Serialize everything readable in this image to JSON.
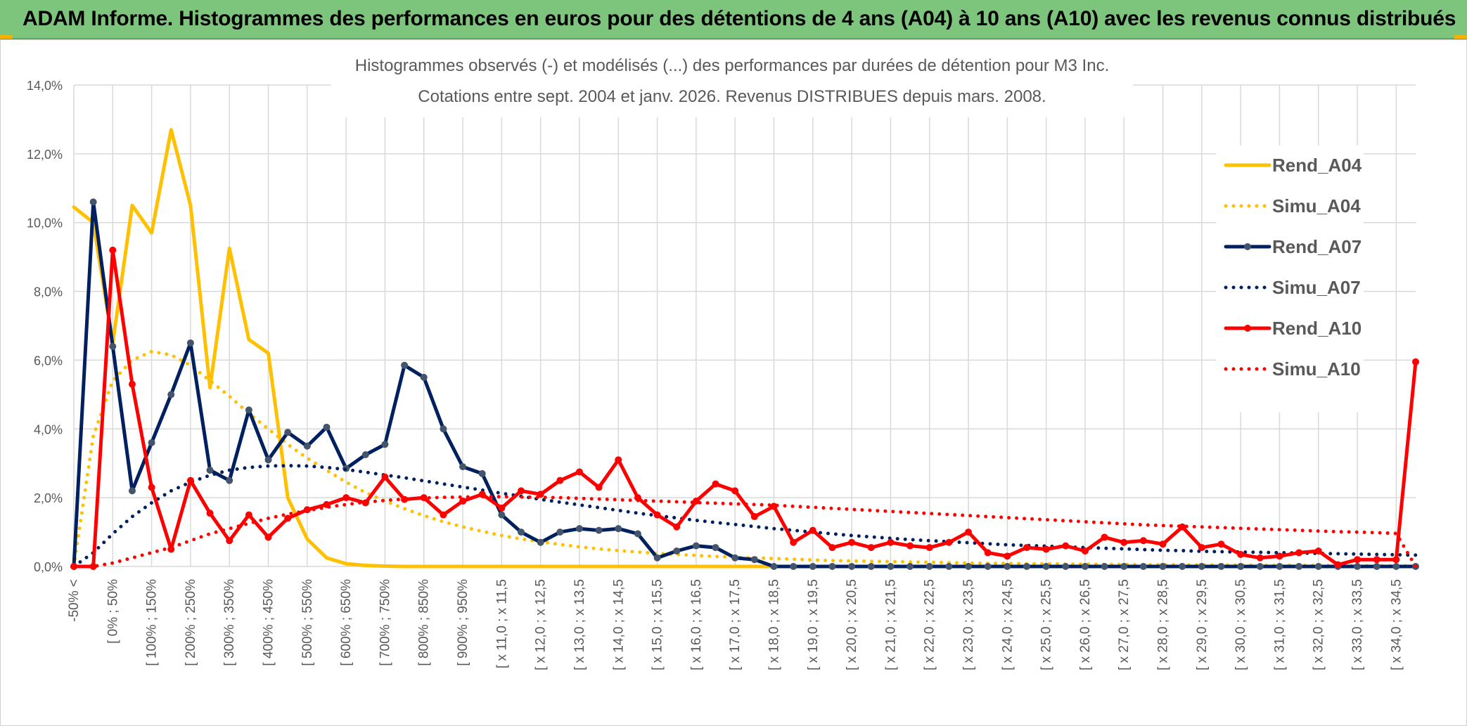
{
  "header": {
    "title": "ADAM Informe. Histogrammes des performances en euros pour des détentions de 4 ans (A04) à 10 ans (A10) avec les revenus connus distribués"
  },
  "colors": {
    "header_bg": "#7dc47d",
    "a04": "#ffc000",
    "a07": "#002060",
    "a10": "#ff0000",
    "grid": "#d9d9d9",
    "text": "#595959"
  },
  "chart_data": {
    "type": "line",
    "title": "Histogrammes observés (-) et modélisés (...) des performances par durées de détention pour M3 Inc.",
    "subtitle": "Cotations entre sept. 2004 et janv. 2026. Revenus DISTRIBUES depuis mars. 2008.",
    "ylim": [
      0,
      14
    ],
    "yticks": [
      "0,0%",
      "2,0%",
      "4,0%",
      "6,0%",
      "8,0%",
      "10,0%",
      "12,0%",
      "14,0%"
    ],
    "xtick_labels": [
      "-50% <",
      "[ 0% ; 50%",
      "[ 100% ; 150%",
      "[ 200% ; 250%",
      "[ 300% ; 350%",
      "[ 400% ; 450%",
      "[ 500% ; 550%",
      "[ 600% ; 650%",
      "[ 700% ; 750%",
      "[ 800% ; 850%",
      "[ 900% ; 950%",
      "[ x 11,0 ; x 11,5",
      "[ x 12,0 ; x 12,5",
      "[ x 13,0 ; x 13,5",
      "[ x 14,0 ; x 14,5",
      "[ x 15,0 ; x 15,5",
      "[ x 16,0 ; x 16,5",
      "[ x 17,0 ; x 17,5",
      "[ x 18,0 ; x 18,5",
      "[ x 19,0 ; x 19,5",
      "[ x 20,0 ; x 20,5",
      "[ x 21,0 ; x 21,5",
      "[ x 22,0 ; x 22,5",
      "[ x 23,0 ; x 23,5",
      "[ x 24,0 ; x 24,5",
      "[ x 25,0 ; x 25,5",
      "[ x 26,0 ; x 26,5",
      "[ x 27,0 ; x 27,5",
      "[ x 28,0 ; x 28,5",
      "[ x 29,0 ; x 29,5",
      "[ x 30,0 ; x 30,5",
      "[ x 31,0 ; x 31,5",
      "[ x 32,0 ; x 32,5",
      "[ x 33,0 ; x 33,5",
      "[ x 34,0 ; x 34,5"
    ],
    "n_points": 70,
    "legend_position": "right",
    "series": [
      {
        "name": "Rend_A04",
        "color": "#ffc000",
        "style": "solid",
        "values": [
          10.45,
          10.0,
          6.5,
          10.5,
          9.7,
          12.7,
          10.5,
          5.2,
          9.25,
          6.6,
          6.2,
          2.0,
          0.8,
          0.25,
          0.08,
          0.03,
          0.01,
          0.0,
          0.0,
          0.0,
          0.0,
          0.0,
          0.0,
          0.0,
          0.0,
          0.0,
          0.0,
          0.0,
          0.0,
          0.0,
          0.0,
          0.0,
          0.0,
          0.0,
          0.0,
          0.0,
          0.0,
          null,
          null,
          null,
          null,
          null,
          null,
          null,
          null,
          null,
          null,
          null,
          null,
          null,
          null,
          null,
          null,
          null,
          null,
          null,
          null,
          null,
          null,
          null,
          null,
          null,
          null,
          null,
          null,
          null,
          null,
          null,
          null,
          null
        ]
      },
      {
        "name": "Simu_A04",
        "color": "#ffc000",
        "style": "dotted",
        "values": [
          0.0,
          3.8,
          5.4,
          6.0,
          6.25,
          6.15,
          5.85,
          5.4,
          4.95,
          4.45,
          4.0,
          3.55,
          3.15,
          2.8,
          2.45,
          2.15,
          1.9,
          1.68,
          1.48,
          1.3,
          1.15,
          1.02,
          0.9,
          0.8,
          0.72,
          0.64,
          0.57,
          0.51,
          0.46,
          0.42,
          0.38,
          0.35,
          0.32,
          0.29,
          0.27,
          0.25,
          0.23,
          0.21,
          0.19,
          0.17,
          0.16,
          0.15,
          0.14,
          0.13,
          0.12,
          0.11,
          0.1,
          0.09,
          0.09,
          0.08,
          0.08,
          0.07,
          0.07,
          0.06,
          0.06,
          0.05,
          0.05,
          0.05,
          0.04,
          0.04,
          0.04,
          0.03,
          0.03,
          0.03,
          0.03,
          0.02,
          0.02,
          0.02,
          0.02,
          0.02
        ]
      },
      {
        "name": "Rend_A07",
        "color": "#002060",
        "style": "solid",
        "markers": true,
        "values": [
          0.0,
          10.6,
          6.4,
          2.2,
          3.6,
          5.0,
          6.5,
          2.8,
          2.5,
          4.55,
          3.1,
          3.9,
          3.5,
          4.05,
          2.85,
          3.25,
          3.55,
          5.85,
          5.5,
          4.0,
          2.9,
          2.7,
          1.5,
          1.0,
          0.7,
          1.0,
          1.1,
          1.05,
          1.1,
          0.95,
          0.25,
          0.45,
          0.6,
          0.55,
          0.25,
          0.2,
          0.0,
          0.0,
          0.0,
          0.0,
          0.0,
          0.0,
          0.0,
          0.0,
          0.0,
          0.0,
          0.0,
          0.0,
          0.0,
          0.0,
          0.0,
          0.0,
          0.0,
          0.0,
          0.0,
          0.0,
          0.0,
          0.0,
          0.0,
          0.0,
          0.0,
          0.0,
          0.0,
          0.0,
          0.0,
          0.0,
          0.0,
          0.0,
          0.0,
          0.0
        ]
      },
      {
        "name": "Simu_A07",
        "color": "#002060",
        "style": "dotted",
        "values": [
          0.0,
          0.4,
          0.95,
          1.45,
          1.85,
          2.2,
          2.45,
          2.65,
          2.8,
          2.88,
          2.92,
          2.93,
          2.92,
          2.88,
          2.82,
          2.74,
          2.66,
          2.58,
          2.49,
          2.4,
          2.31,
          2.22,
          2.13,
          2.04,
          1.95,
          1.87,
          1.79,
          1.71,
          1.63,
          1.55,
          1.48,
          1.41,
          1.34,
          1.28,
          1.22,
          1.16,
          1.1,
          1.05,
          1.0,
          0.95,
          0.9,
          0.86,
          0.82,
          0.78,
          0.75,
          0.72,
          0.69,
          0.66,
          0.63,
          0.61,
          0.59,
          0.57,
          0.55,
          0.53,
          0.51,
          0.49,
          0.47,
          0.46,
          0.44,
          0.43,
          0.42,
          0.41,
          0.4,
          0.39,
          0.38,
          0.37,
          0.36,
          0.35,
          0.34,
          0.33
        ]
      },
      {
        "name": "Rend_A10",
        "color": "#ff0000",
        "style": "solid",
        "markers": true,
        "values": [
          0.0,
          0.0,
          9.2,
          5.3,
          2.3,
          0.5,
          2.5,
          1.55,
          0.75,
          1.5,
          0.85,
          1.4,
          1.65,
          1.8,
          2.0,
          1.85,
          2.6,
          1.95,
          2.0,
          1.5,
          1.9,
          2.1,
          1.7,
          2.2,
          2.1,
          2.5,
          2.75,
          2.3,
          3.1,
          2.0,
          1.5,
          1.15,
          1.9,
          2.4,
          2.2,
          1.45,
          1.75,
          0.7,
          1.05,
          0.55,
          0.7,
          0.55,
          0.7,
          0.6,
          0.55,
          0.7,
          1.0,
          0.4,
          0.3,
          0.55,
          0.5,
          0.6,
          0.45,
          0.85,
          0.7,
          0.75,
          0.65,
          1.15,
          0.55,
          0.65,
          0.35,
          0.25,
          0.3,
          0.4,
          0.45,
          0.05,
          0.2,
          0.2,
          0.2,
          5.95
        ]
      },
      {
        "name": "Simu_A10",
        "color": "#ff0000",
        "style": "dotted",
        "values": [
          0.0,
          0.0,
          0.1,
          0.25,
          0.4,
          0.55,
          0.75,
          0.95,
          1.1,
          1.25,
          1.4,
          1.52,
          1.62,
          1.72,
          1.8,
          1.87,
          1.92,
          1.96,
          1.99,
          2.01,
          2.02,
          2.03,
          2.03,
          2.02,
          2.01,
          2.0,
          1.98,
          1.96,
          1.94,
          1.92,
          1.9,
          1.88,
          1.86,
          1.84,
          1.82,
          1.8,
          1.78,
          1.75,
          1.72,
          1.69,
          1.66,
          1.63,
          1.6,
          1.57,
          1.54,
          1.51,
          1.48,
          1.45,
          1.42,
          1.39,
          1.36,
          1.33,
          1.3,
          1.27,
          1.24,
          1.21,
          1.19,
          1.17,
          1.15,
          1.13,
          1.11,
          1.09,
          1.07,
          1.05,
          1.03,
          1.01,
          1.0,
          0.98,
          0.96,
          0.0
        ]
      }
    ]
  }
}
